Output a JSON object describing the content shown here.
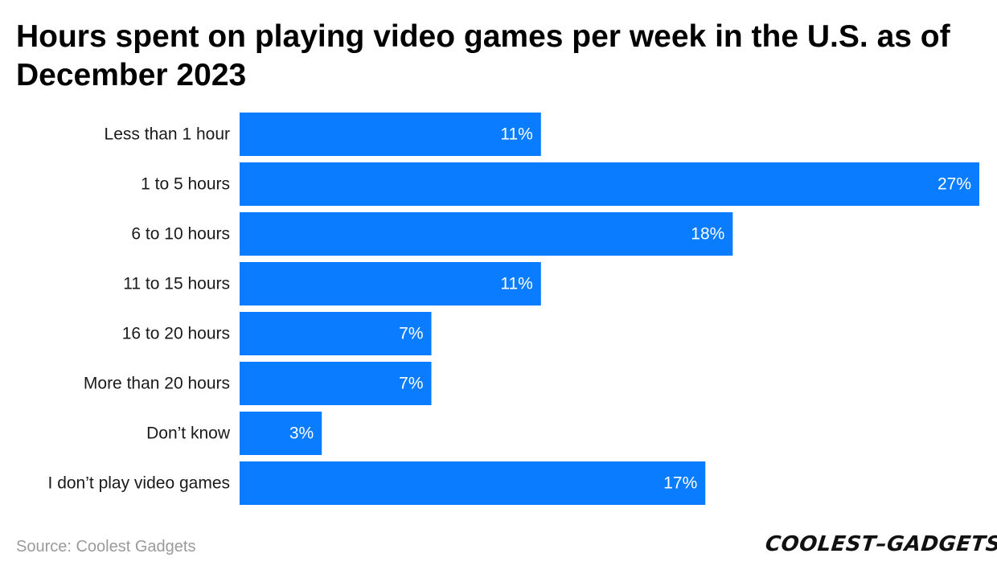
{
  "title": "Hours spent on playing video games per week in the U.S. as of December 2023",
  "source": "Source: Coolest Gadgets",
  "brand_logo": "COOLEST-GADGETS",
  "colors": {
    "bar": "#0a7cff",
    "bar_label": "#ffffff",
    "category_label": "#1a1a1a"
  },
  "chart_data": {
    "type": "bar",
    "orientation": "horizontal",
    "categories": [
      "Less than 1 hour",
      "1 to 5 hours",
      "6 to 10 hours",
      "11 to 15 hours",
      "16 to 20 hours",
      "More than 20 hours",
      "Don’t know",
      "I don’t play video games"
    ],
    "values": [
      11,
      27,
      18,
      11,
      7,
      7,
      3,
      17
    ],
    "value_labels": [
      "11%",
      "27%",
      "18%",
      "11%",
      "7%",
      "7%",
      "3%",
      "17%"
    ],
    "unit": "%",
    "xlim": [
      0,
      27
    ],
    "grid": false,
    "legend": "none"
  }
}
